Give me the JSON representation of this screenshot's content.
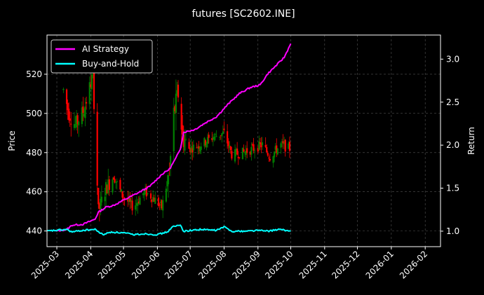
{
  "chart_data": {
    "type": "line",
    "title": "futures [SC2602.INE]",
    "ylabel_left": "Price",
    "ylabel_right": "Return",
    "grid": true,
    "legend_position": "top-left",
    "colors": {
      "background": "#000000",
      "ai_strategy": "#ff00ff",
      "buy_and_hold": "#00ffff",
      "candle_up": "#008000",
      "candle_down": "#ff0000",
      "grid": "#555555",
      "axes": "#ffffff"
    },
    "x_axis": {
      "type": "date",
      "range": [
        "2025-02-20",
        "2026-02-15"
      ],
      "tick_dates": [
        "2025-03-01",
        "2025-04-01",
        "2025-05-01",
        "2025-06-01",
        "2025-07-01",
        "2025-08-01",
        "2025-09-01",
        "2025-10-01",
        "2025-11-01",
        "2025-12-01",
        "2026-01-01",
        "2026-02-01"
      ],
      "tick_labels": [
        "2025-03",
        "2025-04",
        "2025-05",
        "2025-06",
        "2025-07",
        "2025-08",
        "2025-09",
        "2025-10",
        "2025-11",
        "2025-12",
        "2026-01",
        "2026-02"
      ]
    },
    "y_left": {
      "range": [
        432,
        540
      ],
      "ticks": [
        440,
        460,
        480,
        500,
        520
      ]
    },
    "y_right": {
      "range": [
        0.82,
        3.28
      ],
      "ticks": [
        1.0,
        1.5,
        2.0,
        2.5,
        3.0
      ],
      "tick_labels": [
        "1.0",
        "1.5",
        "2.0",
        "2.5",
        "3.0"
      ]
    },
    "price_anchors": [
      [
        "2025-03-07",
        512
      ],
      [
        "2025-03-12",
        500
      ],
      [
        "2025-03-18",
        494
      ],
      [
        "2025-03-26",
        502
      ],
      [
        "2025-04-03",
        520
      ],
      [
        "2025-04-08",
        450
      ],
      [
        "2025-04-15",
        462
      ],
      [
        "2025-04-22",
        468
      ],
      [
        "2025-04-30",
        458
      ],
      [
        "2025-05-10",
        452
      ],
      [
        "2025-05-20",
        460
      ],
      [
        "2025-05-28",
        457
      ],
      [
        "2025-06-05",
        452
      ],
      [
        "2025-06-12",
        470
      ],
      [
        "2025-06-16",
        500
      ],
      [
        "2025-06-20",
        510
      ],
      [
        "2025-06-24",
        488
      ],
      [
        "2025-06-30",
        482
      ],
      [
        "2025-07-10",
        484
      ],
      [
        "2025-07-22",
        488
      ],
      [
        "2025-08-01",
        490
      ],
      [
        "2025-08-08",
        479
      ],
      [
        "2025-08-18",
        480
      ],
      [
        "2025-08-28",
        482
      ],
      [
        "2025-09-05",
        484
      ],
      [
        "2025-09-12",
        478
      ],
      [
        "2025-09-22",
        484
      ],
      [
        "2025-09-30",
        482
      ]
    ],
    "series": [
      {
        "name": "AI Strategy",
        "color": "#ff00ff",
        "axis": "right",
        "points": [
          [
            "2025-02-28",
            1.0
          ],
          [
            "2025-03-10",
            1.02
          ],
          [
            "2025-03-15",
            1.07
          ],
          [
            "2025-03-25",
            1.08
          ],
          [
            "2025-04-05",
            1.14
          ],
          [
            "2025-04-08",
            1.22
          ],
          [
            "2025-04-15",
            1.28
          ],
          [
            "2025-04-22",
            1.3
          ],
          [
            "2025-05-01",
            1.36
          ],
          [
            "2025-05-15",
            1.45
          ],
          [
            "2025-05-25",
            1.52
          ],
          [
            "2025-06-05",
            1.66
          ],
          [
            "2025-06-12",
            1.72
          ],
          [
            "2025-06-18",
            1.85
          ],
          [
            "2025-06-22",
            1.96
          ],
          [
            "2025-06-25",
            2.15
          ],
          [
            "2025-07-05",
            2.18
          ],
          [
            "2025-07-15",
            2.26
          ],
          [
            "2025-07-25",
            2.33
          ],
          [
            "2025-08-05",
            2.48
          ],
          [
            "2025-08-15",
            2.6
          ],
          [
            "2025-08-25",
            2.67
          ],
          [
            "2025-09-03",
            2.7
          ],
          [
            "2025-09-10",
            2.83
          ],
          [
            "2025-09-18",
            2.93
          ],
          [
            "2025-09-25",
            3.02
          ],
          [
            "2025-10-01",
            3.18
          ]
        ]
      },
      {
        "name": "Buy-and-Hold",
        "color": "#00ffff",
        "axis": "right",
        "points": [
          [
            "2025-02-20",
            1.0
          ],
          [
            "2025-03-01",
            1.01
          ],
          [
            "2025-03-10",
            1.02
          ],
          [
            "2025-03-15",
            0.99
          ],
          [
            "2025-03-25",
            1.01
          ],
          [
            "2025-04-05",
            1.02
          ],
          [
            "2025-04-12",
            0.96
          ],
          [
            "2025-04-20",
            0.99
          ],
          [
            "2025-05-01",
            0.98
          ],
          [
            "2025-05-10",
            0.96
          ],
          [
            "2025-05-20",
            0.97
          ],
          [
            "2025-06-01",
            0.96
          ],
          [
            "2025-06-10",
            0.99
          ],
          [
            "2025-06-15",
            1.05
          ],
          [
            "2025-06-22",
            1.07
          ],
          [
            "2025-06-25",
            1.0
          ],
          [
            "2025-07-10",
            1.02
          ],
          [
            "2025-07-25",
            1.01
          ],
          [
            "2025-08-01",
            1.05
          ],
          [
            "2025-08-08",
            1.0
          ],
          [
            "2025-08-20",
            1.0
          ],
          [
            "2025-09-01",
            1.01
          ],
          [
            "2025-09-10",
            1.0
          ],
          [
            "2025-09-20",
            1.02
          ],
          [
            "2025-10-01",
            1.0
          ]
        ]
      }
    ]
  }
}
